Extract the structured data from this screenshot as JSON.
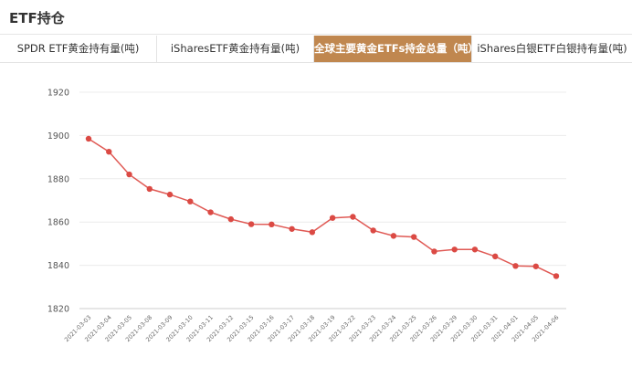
{
  "header": {
    "title": "ETF持仓"
  },
  "tabs": [
    {
      "label": "SPDR ETF黄金持有量(吨)",
      "active": false
    },
    {
      "label": "iSharesETF黄金持有量(吨)",
      "active": false
    },
    {
      "label": "全球主要黄金ETFs持金总量（吨）",
      "active": true
    },
    {
      "label": "iShares白银ETF白银持有量(吨)",
      "active": false
    }
  ],
  "colors": {
    "accent": "#c0874f",
    "series_line": "#e05a55",
    "series_point": "#db4a44"
  },
  "chart_data": {
    "type": "line",
    "title": "",
    "xlabel": "",
    "ylabel": "",
    "ylim": [
      1820,
      1920
    ],
    "yticks": [
      1820,
      1840,
      1860,
      1880,
      1900,
      1920
    ],
    "grid": true,
    "x": [
      "2021-03-03",
      "2021-03-04",
      "2021-03-05",
      "2021-03-08",
      "2021-03-09",
      "2021-03-10",
      "2021-03-11",
      "2021-03-12",
      "2021-03-15",
      "2021-03-16",
      "2021-03-17",
      "2021-03-18",
      "2021-03-19",
      "2021-03-22",
      "2021-03-23",
      "2021-03-24",
      "2021-03-25",
      "2021-03-26",
      "2021-03-29",
      "2021-03-30",
      "2021-03-31",
      "2021-04-01",
      "2021-04-05",
      "2021-04-06"
    ],
    "series": [
      {
        "values": [
          1898.5,
          1892.5,
          1882.0,
          1875.3,
          1872.7,
          1869.5,
          1864.5,
          1861.3,
          1859.0,
          1858.9,
          1856.8,
          1855.3,
          1861.9,
          1862.4,
          1856.1,
          1853.6,
          1853.1,
          1846.4,
          1847.3,
          1847.3,
          1844.1,
          1839.7,
          1839.5,
          1835.0
        ]
      }
    ]
  }
}
